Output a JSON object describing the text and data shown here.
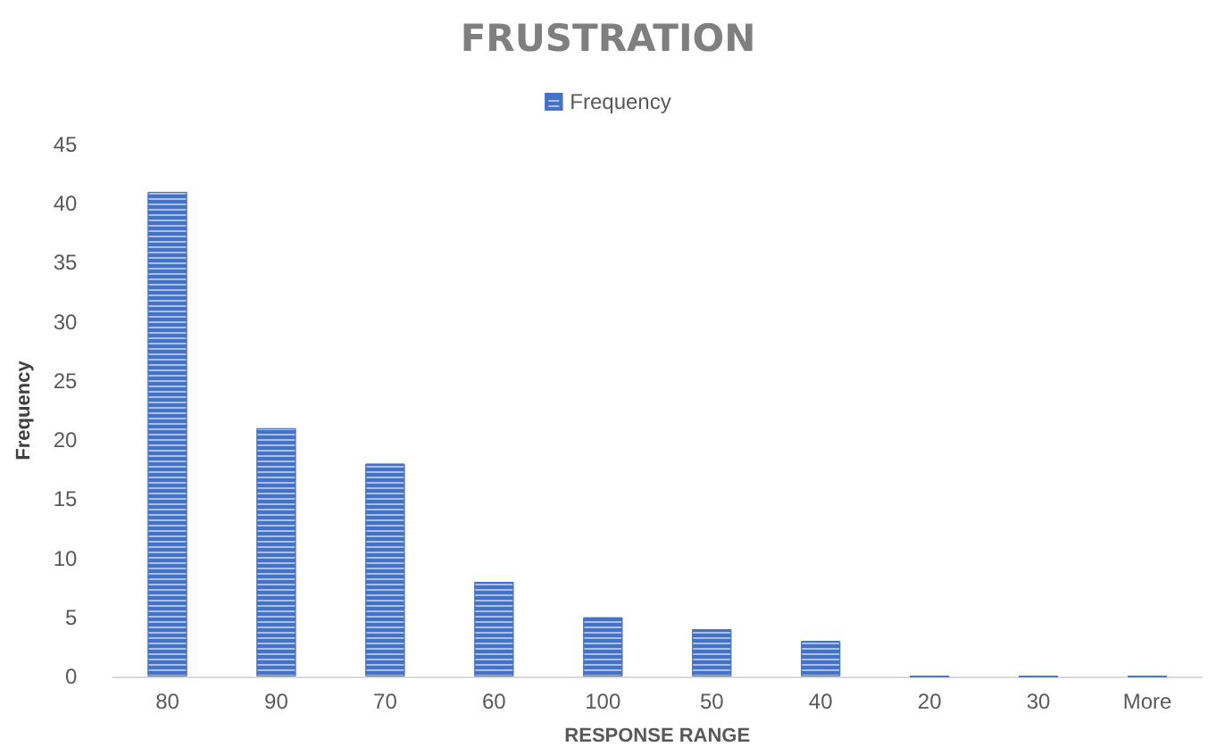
{
  "chart_data": {
    "type": "bar",
    "title": "FRUSTRATION",
    "xlabel": "RESPONSE RANGE",
    "ylabel": "Frequency",
    "categories": [
      "80",
      "90",
      "70",
      "60",
      "100",
      "50",
      "40",
      "20",
      "30",
      "More"
    ],
    "series": [
      {
        "name": "Frequency",
        "color": "#4472c4",
        "values": [
          41,
          21,
          18,
          8,
          5,
          4,
          3,
          0,
          0,
          0
        ]
      }
    ],
    "ylim": [
      0,
      45
    ],
    "yticks": [
      0,
      5,
      10,
      15,
      20,
      25,
      30,
      35,
      40,
      45
    ],
    "grid": false,
    "legend": "top"
  }
}
